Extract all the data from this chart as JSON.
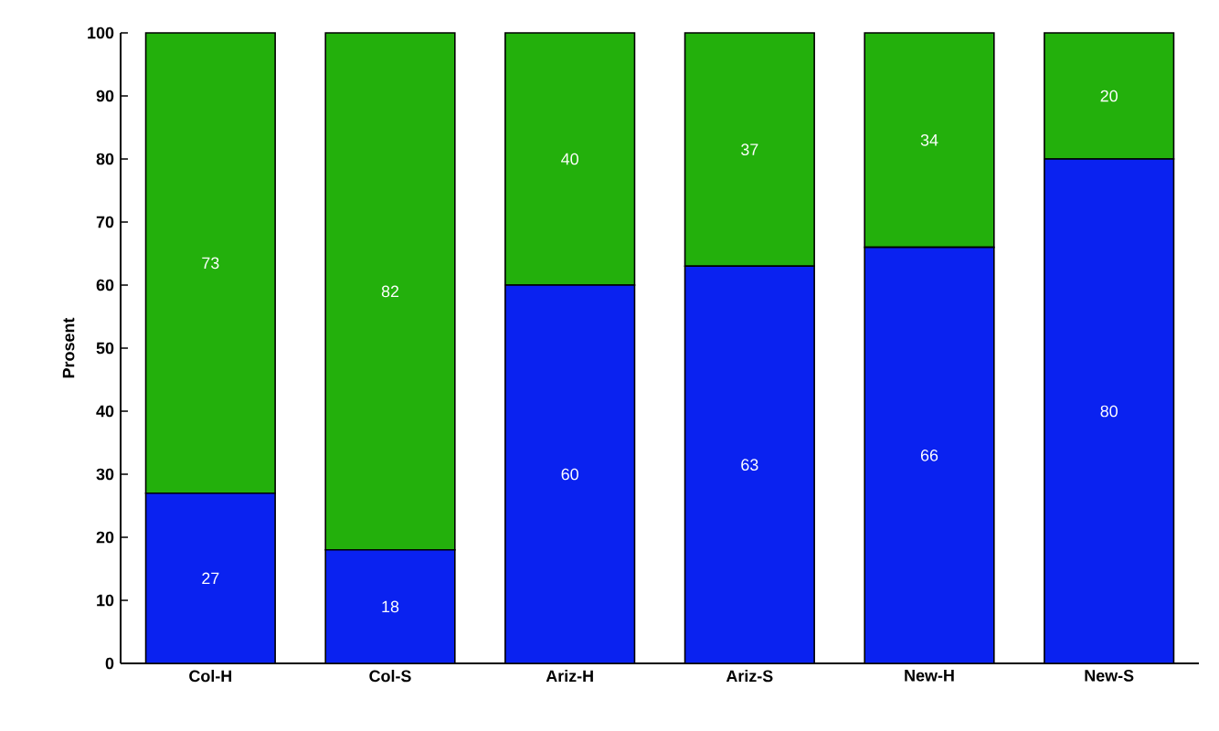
{
  "chart_data": {
    "type": "bar",
    "stacked": true,
    "ylabel": "Prosent",
    "categories": [
      "Col-H",
      "Col-S",
      "Ariz-H",
      "Ariz-S",
      "New-H",
      "New-S"
    ],
    "series": [
      {
        "color": "#0a22f0",
        "values": [
          27,
          18,
          60,
          63,
          66,
          80
        ]
      },
      {
        "color": "#23b00c",
        "values": [
          73,
          82,
          40,
          37,
          34,
          20
        ]
      }
    ],
    "ylim": [
      0,
      100
    ],
    "yticks": [
      0,
      10,
      20,
      30,
      40,
      50,
      60,
      70,
      80,
      90,
      100
    ],
    "data_labels": true,
    "grid": false
  }
}
